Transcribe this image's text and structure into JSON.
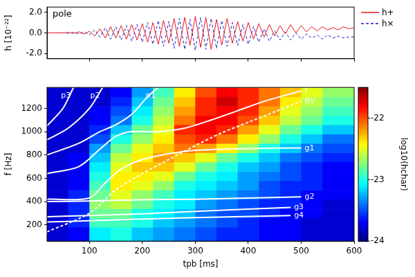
{
  "chart_data": [
    {
      "type": "line",
      "annotations": [
        "pole"
      ],
      "ylabel": "h [10⁻²²]",
      "x": [
        20,
        30,
        40,
        50,
        60,
        70,
        80,
        90,
        100,
        110,
        120,
        130,
        140,
        150,
        160,
        170,
        180,
        190,
        200,
        210,
        220,
        230,
        240,
        250,
        260,
        270,
        280,
        290,
        300,
        310,
        320,
        330,
        340,
        350,
        360,
        370,
        380,
        390,
        400,
        410,
        420,
        430,
        440,
        450,
        460,
        470,
        480,
        490,
        500,
        510,
        520,
        530,
        540,
        550,
        560,
        570,
        580,
        590,
        600
      ],
      "xlim": [
        20,
        600
      ],
      "xticks": [
        100,
        200,
        300,
        400,
        500,
        600
      ],
      "ylim": [
        -2.5,
        2.5
      ],
      "yticks": [
        {
          "value": -2,
          "label": "-2.0"
        },
        {
          "value": 0,
          "label": "0.0"
        },
        {
          "value": 2,
          "label": "2.0"
        }
      ],
      "tick_labels": "y",
      "legend": "right",
      "series": [
        {
          "name": "h+",
          "color": "#e8141c",
          "line_style": "solid",
          "values": [
            0,
            0,
            0,
            0,
            0.05,
            -0.05,
            0.1,
            -0.1,
            0.15,
            -0.3,
            0.4,
            -0.5,
            0.6,
            -0.5,
            0.7,
            -0.6,
            0.8,
            -0.7,
            0.9,
            -0.9,
            1.0,
            -1.1,
            1.2,
            -1.0,
            1.4,
            -1.3,
            1.5,
            -1.2,
            1.6,
            -1.4,
            1.5,
            -1.6,
            1.3,
            -1.2,
            1.4,
            -1.0,
            1.1,
            -0.8,
            1.0,
            -0.6,
            0.9,
            -0.4,
            0.8,
            -0.3,
            0.7,
            -0.1,
            0.8,
            0.0,
            0.7,
            0.1,
            0.6,
            0.2,
            0.6,
            0.3,
            0.5,
            0.3,
            0.6,
            0.4,
            0.5
          ]
        },
        {
          "name": "h×",
          "color": "#1e1ec8",
          "line_style": "dashed",
          "values": [
            0,
            0,
            0,
            0,
            -0.05,
            0.05,
            -0.1,
            0.1,
            -0.2,
            0.3,
            -0.4,
            0.5,
            -0.6,
            0.6,
            -0.7,
            0.7,
            -0.8,
            0.8,
            -0.9,
            1.0,
            -1.1,
            1.2,
            -1.3,
            1.1,
            -1.5,
            1.4,
            -1.6,
            1.3,
            -1.7,
            1.5,
            -1.6,
            1.4,
            -1.5,
            1.2,
            -1.3,
            1.0,
            -1.2,
            0.8,
            -1.1,
            0.6,
            -0.9,
            0.4,
            -0.8,
            0.2,
            -0.7,
            0.1,
            -0.7,
            0.0,
            -0.6,
            -0.1,
            -0.5,
            -0.2,
            -0.6,
            -0.2,
            -0.5,
            -0.3,
            -0.5,
            -0.4,
            -0.4
          ]
        }
      ]
    },
    {
      "type": "heatmap",
      "xlabel": "tpb [ms]",
      "ylabel": "f [Hz]",
      "xlim": [
        20,
        600
      ],
      "xticks": [
        100,
        200,
        300,
        400,
        500,
        600
      ],
      "ylim": [
        60,
        1380
      ],
      "yticks": [
        200,
        400,
        600,
        800,
        1000,
        1200
      ],
      "x_edges": [
        20,
        60,
        100,
        140,
        180,
        220,
        260,
        300,
        340,
        380,
        420,
        460,
        500,
        540,
        600
      ],
      "y_edges": [
        60,
        180,
        260,
        340,
        420,
        500,
        580,
        660,
        740,
        820,
        900,
        980,
        1060,
        1140,
        1220,
        1300,
        1380
      ],
      "cells": [
        [
          -23.8,
          -23.7,
          -23.1,
          -23.0,
          -23.2,
          -23.3,
          -23.4,
          -23.5,
          -23.6,
          -23.6,
          -23.7,
          -23.7,
          -23.8,
          -23.8
        ],
        [
          -23.8,
          -23.6,
          -22.9,
          -22.9,
          -23.0,
          -23.2,
          -23.3,
          -23.4,
          -23.5,
          -23.6,
          -23.7,
          -23.7,
          -23.8,
          -23.8
        ],
        [
          -23.8,
          -23.6,
          -22.8,
          -22.8,
          -23.0,
          -23.1,
          -23.2,
          -23.4,
          -23.5,
          -23.5,
          -23.6,
          -23.7,
          -23.7,
          -23.8
        ],
        [
          -23.8,
          -23.6,
          -22.7,
          -22.6,
          -22.8,
          -23.0,
          -23.1,
          -23.3,
          -23.4,
          -23.5,
          -23.6,
          -23.6,
          -23.7,
          -23.8
        ],
        [
          -23.8,
          -23.6,
          -22.8,
          -22.5,
          -22.7,
          -22.9,
          -23.1,
          -23.2,
          -23.3,
          -23.4,
          -23.5,
          -23.6,
          -23.7,
          -23.7
        ],
        [
          -23.8,
          -23.7,
          -22.9,
          -22.4,
          -22.5,
          -22.7,
          -23.0,
          -23.1,
          -23.2,
          -23.3,
          -23.5,
          -23.6,
          -23.6,
          -23.7
        ],
        [
          -23.8,
          -23.7,
          -23.0,
          -22.4,
          -22.4,
          -22.5,
          -22.8,
          -23.0,
          -23.1,
          -23.3,
          -23.4,
          -23.5,
          -23.6,
          -23.7
        ],
        [
          -23.8,
          -23.7,
          -23.1,
          -22.5,
          -22.3,
          -22.3,
          -22.5,
          -22.8,
          -23.0,
          -23.2,
          -23.3,
          -23.5,
          -23.6,
          -23.7
        ],
        [
          -23.8,
          -23.7,
          -23.2,
          -22.6,
          -22.4,
          -22.2,
          -22.3,
          -22.5,
          -22.8,
          -23.0,
          -23.2,
          -23.4,
          -23.5,
          -23.6
        ],
        [
          -23.8,
          -23.8,
          -23.3,
          -22.8,
          -22.5,
          -22.3,
          -22.1,
          -22.2,
          -22.4,
          -22.7,
          -23.0,
          -23.2,
          -23.4,
          -23.5
        ],
        [
          -23.8,
          -23.8,
          -23.5,
          -23.0,
          -22.7,
          -22.4,
          -22.0,
          -21.9,
          -22.1,
          -22.4,
          -22.7,
          -23.0,
          -23.2,
          -23.4
        ],
        [
          -23.8,
          -23.8,
          -23.6,
          -23.2,
          -22.8,
          -22.5,
          -21.9,
          -21.8,
          -21.9,
          -22.2,
          -22.5,
          -22.8,
          -23.0,
          -23.2
        ],
        [
          -23.8,
          -23.8,
          -23.7,
          -23.4,
          -23.0,
          -22.6,
          -22.1,
          -21.8,
          -21.8,
          -22.0,
          -22.3,
          -22.6,
          -22.8,
          -23.0
        ],
        [
          -23.8,
          -23.8,
          -23.7,
          -23.5,
          -23.1,
          -22.7,
          -22.2,
          -21.9,
          -21.8,
          -21.9,
          -22.2,
          -22.5,
          -22.7,
          -22.9
        ],
        [
          -23.8,
          -23.8,
          -23.8,
          -23.6,
          -23.2,
          -22.8,
          -22.3,
          -21.9,
          -21.7,
          -21.9,
          -22.1,
          -22.4,
          -22.6,
          -22.8
        ],
        [
          -23.8,
          -23.8,
          -23.8,
          -23.7,
          -23.3,
          -22.9,
          -22.4,
          -22.0,
          -21.8,
          -21.9,
          -22.1,
          -22.3,
          -22.5,
          -22.7
        ]
      ],
      "colorbar_label": "log10(hchar)",
      "colorbar_range": [
        -24,
        -21.5
      ],
      "colorbar_ticks": [
        -24,
        -23,
        -22
      ],
      "series": [
        {
          "name": "p3",
          "color": "#ffffff",
          "line_style": "solid",
          "x": [
            20,
            50,
            70
          ],
          "values": [
            1050,
            1200,
            1380
          ]
        },
        {
          "name": "p2",
          "color": "#ffffff",
          "line_style": "solid",
          "x": [
            20,
            60,
            100,
            125
          ],
          "values": [
            930,
            1030,
            1200,
            1380
          ]
        },
        {
          "name": "p1",
          "color": "#ffffff",
          "line_style": "solid",
          "x": [
            20,
            80,
            120,
            150,
            180,
            210,
            230
          ],
          "values": [
            800,
            900,
            1000,
            1060,
            1150,
            1300,
            1380
          ]
        },
        {
          "name": "f",
          "color": "#ffffff",
          "line_style": "solid",
          "x": [
            20,
            80,
            120,
            150,
            180,
            230,
            280,
            330,
            380,
            430,
            500
          ],
          "values": [
            640,
            700,
            850,
            960,
            1000,
            1000,
            1030,
            1100,
            1180,
            1260,
            1350
          ]
        },
        {
          "name": "BV",
          "color": "#ffffff",
          "line_style": "dashed",
          "x": [
            20,
            100,
            150,
            200,
            250,
            300,
            350,
            400,
            450,
            500
          ],
          "values": [
            140,
            300,
            500,
            640,
            760,
            880,
            990,
            1080,
            1170,
            1260
          ]
        },
        {
          "name": "g1",
          "color": "#ffffff",
          "line_style": "solid",
          "x": [
            20,
            100,
            130,
            160,
            200,
            250,
            300,
            400,
            500
          ],
          "values": [
            420,
            430,
            560,
            680,
            760,
            810,
            840,
            855,
            860
          ]
        },
        {
          "name": "g2",
          "color": "#ffffff",
          "line_style": "solid",
          "x": [
            20,
            100,
            200,
            300,
            500
          ],
          "values": [
            400,
            405,
            415,
            420,
            440
          ]
        },
        {
          "name": "g3",
          "color": "#ffffff",
          "line_style": "solid",
          "x": [
            20,
            100,
            200,
            300,
            480
          ],
          "values": [
            270,
            280,
            295,
            315,
            350
          ]
        },
        {
          "name": "g4",
          "color": "#ffffff",
          "line_style": "solid",
          "x": [
            20,
            100,
            200,
            300,
            480
          ],
          "values": [
            225,
            235,
            250,
            262,
            280
          ]
        }
      ]
    }
  ]
}
